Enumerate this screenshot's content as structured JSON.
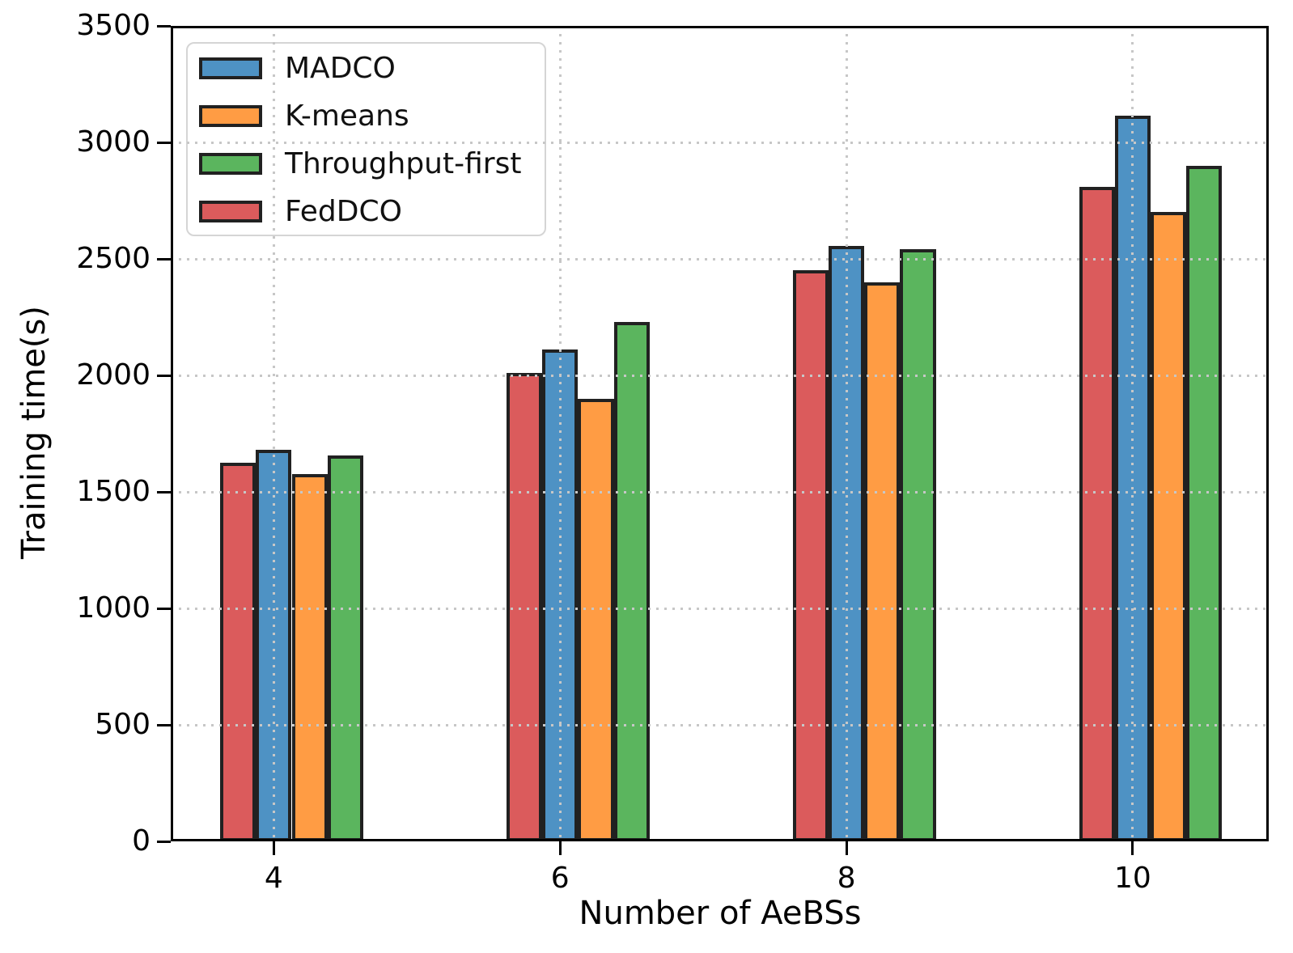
{
  "chart_data": {
    "type": "bar",
    "title": "",
    "xlabel": "Number of AeBSs",
    "ylabel": "Training time(s)",
    "categories": [
      4,
      6,
      8,
      10
    ],
    "series": [
      {
        "name": "MADCO",
        "color": "#4E92C4",
        "offset_units": 0,
        "values": [
          1680,
          2110,
          2555,
          3115
        ]
      },
      {
        "name": "K-means",
        "color": "#FF9C44",
        "offset_units": 0.25,
        "values": [
          1575,
          1900,
          2400,
          2700
        ]
      },
      {
        "name": "Throughput-first",
        "color": "#5BB55E",
        "offset_units": 0.5,
        "values": [
          1655,
          2230,
          2540,
          2900
        ]
      },
      {
        "name": "FedDCO",
        "color": "#DB5B5C",
        "offset_units": -0.25,
        "values": [
          1625,
          2010,
          2450,
          2810
        ]
      }
    ],
    "ylim": [
      0,
      3500
    ],
    "yticks": [
      0,
      500,
      1000,
      1500,
      2000,
      2500,
      3000,
      3500
    ],
    "xlim": [
      3.28,
      10.95
    ],
    "bar_width_units": 0.25,
    "grid": "dotted both axes, drawn above bars and legend",
    "legend_position": "upper-left"
  },
  "colors": {
    "bar_edge": "#212121",
    "grid": "#c7c7c7",
    "axis": "#000000",
    "legend_border": "#d5d5d5",
    "legend_background": "#ffffff"
  }
}
